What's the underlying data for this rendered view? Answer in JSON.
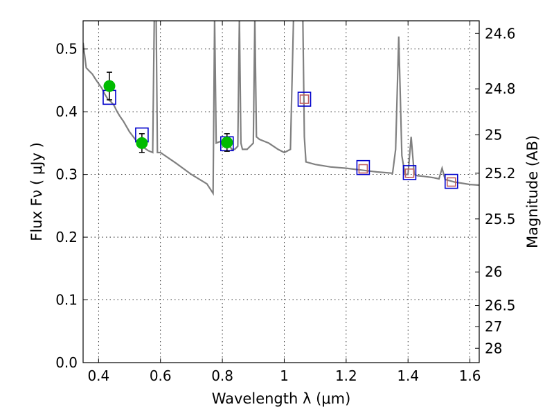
{
  "chart_data": {
    "type": "scatter",
    "xlabel": "Wavelength  λ (μm)",
    "ylabel": "Flux  Fν  ( μJy )",
    "ylabel_right": "Magnitude (AB)",
    "xlim": [
      0.35,
      1.63
    ],
    "ylim": [
      0.0,
      0.545
    ],
    "grid": true,
    "x_ticks": [
      {
        "value": 0.4,
        "label": "0.4"
      },
      {
        "value": 0.6,
        "label": "0.6"
      },
      {
        "value": 0.8,
        "label": "0.8"
      },
      {
        "value": 1.0,
        "label": "1"
      },
      {
        "value": 1.2,
        "label": "1.2"
      },
      {
        "value": 1.4,
        "label": "1.4"
      },
      {
        "value": 1.6,
        "label": "1.6"
      }
    ],
    "y_ticks": [
      {
        "value": 0.0,
        "label": "0.0"
      },
      {
        "value": 0.1,
        "label": "0.1"
      },
      {
        "value": 0.2,
        "label": "0.2"
      },
      {
        "value": 0.3,
        "label": "0.3"
      },
      {
        "value": 0.4,
        "label": "0.4"
      },
      {
        "value": 0.5,
        "label": "0.5"
      }
    ],
    "mag_ticks": [
      {
        "mag": 24.6,
        "label": "24.6"
      },
      {
        "mag": 24.8,
        "label": "24.8"
      },
      {
        "mag": 25.0,
        "label": "25"
      },
      {
        "mag": 25.2,
        "label": "25.2"
      },
      {
        "mag": 25.5,
        "label": "25.5"
      },
      {
        "mag": 26.0,
        "label": "26"
      },
      {
        "mag": 26.5,
        "label": "26.5"
      },
      {
        "mag": 27.0,
        "label": "27"
      },
      {
        "mag": 28.0,
        "label": "28"
      }
    ],
    "series": [
      {
        "kind": "model_spectrum",
        "color": "#808080",
        "x": [
          0.35,
          0.36,
          0.37,
          0.38,
          0.39,
          0.4,
          0.41,
          0.42,
          0.43,
          0.44,
          0.45,
          0.46,
          0.47,
          0.48,
          0.5,
          0.52,
          0.54,
          0.56,
          0.575,
          0.58,
          0.583,
          0.586,
          0.59,
          0.6,
          0.65,
          0.7,
          0.75,
          0.77,
          0.775,
          0.78,
          0.79,
          0.8,
          0.81,
          0.82,
          0.83,
          0.84,
          0.85,
          0.855,
          0.86,
          0.865,
          0.87,
          0.88,
          0.9,
          0.905,
          0.91,
          0.92,
          0.95,
          0.98,
          1.0,
          1.02,
          1.03,
          1.04,
          1.05,
          1.06,
          1.065,
          1.07,
          1.1,
          1.15,
          1.2,
          1.25,
          1.3,
          1.35,
          1.36,
          1.37,
          1.38,
          1.39,
          1.4,
          1.41,
          1.42,
          1.43,
          1.45,
          1.48,
          1.5,
          1.51,
          1.52,
          1.55,
          1.6,
          1.63
        ],
        "y": [
          0.51,
          0.47,
          0.465,
          0.46,
          0.452,
          0.445,
          0.438,
          0.428,
          0.42,
          0.416,
          0.41,
          0.4,
          0.392,
          0.385,
          0.368,
          0.355,
          0.345,
          0.338,
          0.335,
          0.55,
          0.55,
          0.55,
          0.335,
          0.335,
          0.318,
          0.3,
          0.285,
          0.27,
          0.55,
          0.35,
          0.352,
          0.353,
          0.355,
          0.35,
          0.34,
          0.34,
          0.345,
          0.55,
          0.35,
          0.34,
          0.34,
          0.34,
          0.35,
          0.55,
          0.36,
          0.356,
          0.35,
          0.34,
          0.335,
          0.34,
          0.55,
          0.55,
          0.55,
          0.55,
          0.36,
          0.32,
          0.316,
          0.312,
          0.31,
          0.307,
          0.304,
          0.302,
          0.34,
          0.52,
          0.33,
          0.3,
          0.3,
          0.36,
          0.3,
          0.298,
          0.297,
          0.295,
          0.293,
          0.31,
          0.292,
          0.288,
          0.284,
          0.283
        ]
      },
      {
        "kind": "model_bandpass",
        "marker": "square-open",
        "color": "#0000cc",
        "x": [
          0.435,
          0.54,
          0.815,
          1.065,
          1.255,
          1.405,
          1.54
        ],
        "y": [
          0.423,
          0.363,
          0.349,
          0.42,
          0.311,
          0.303,
          0.289
        ]
      },
      {
        "kind": "observed",
        "marker": "circle",
        "color": "#00bb00",
        "x": [
          0.435,
          0.54,
          0.815
        ],
        "y": [
          0.441,
          0.35,
          0.351
        ],
        "yerr": [
          0.022,
          0.015,
          0.014
        ]
      },
      {
        "kind": "upper_limit",
        "marker": "square-open",
        "color": "#c06060",
        "x": [
          1.065,
          1.255,
          1.405,
          1.54
        ],
        "y": [
          0.42,
          0.309,
          0.302,
          0.288
        ]
      }
    ]
  }
}
